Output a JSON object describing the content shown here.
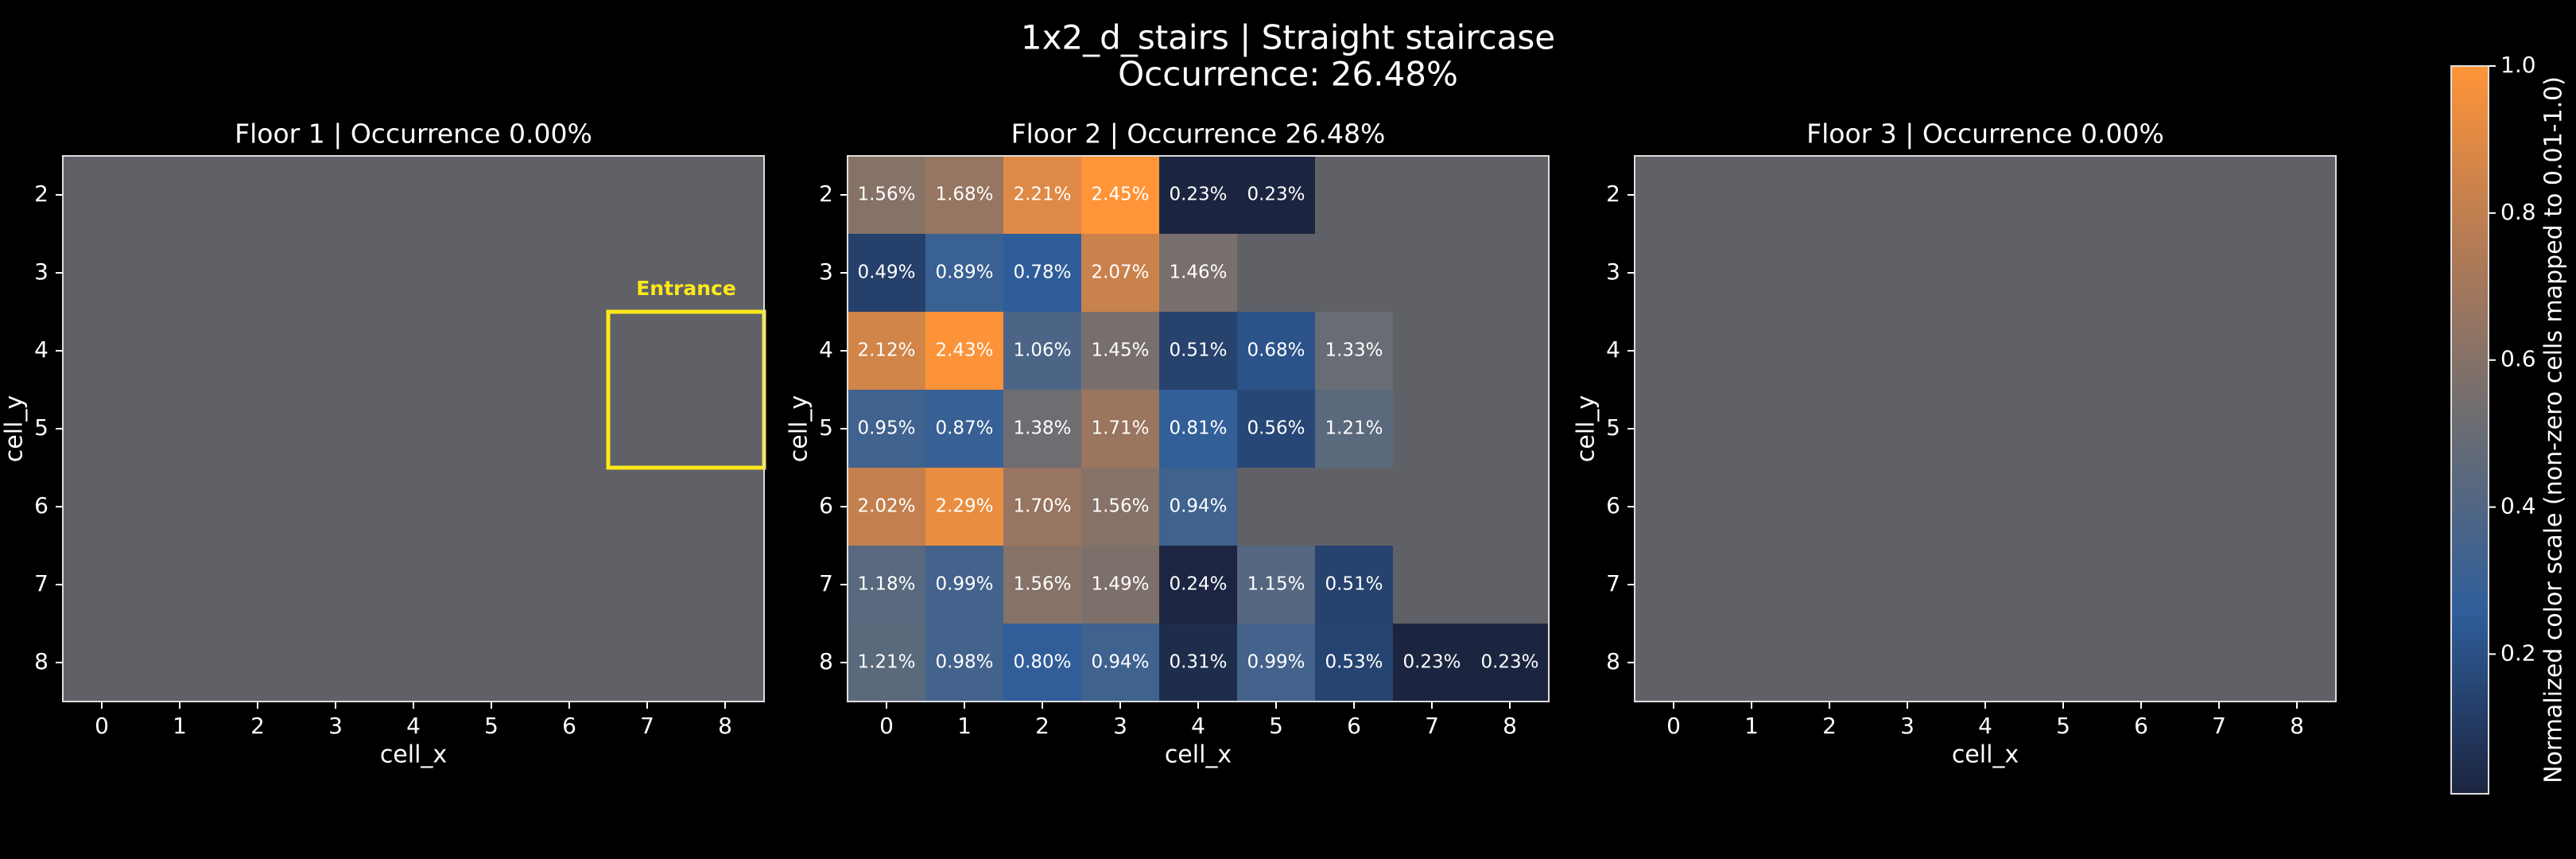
{
  "title": "1x2_d_stairs | Straight staircase",
  "subtitle": "Occurrence: 26.48%",
  "chart_data": [
    {
      "type": "heatmap",
      "title": "Floor 1 | Occurrence 0.00%",
      "x_label": "cell_x",
      "y_label": "cell_y",
      "x": [
        0,
        1,
        2,
        3,
        4,
        5,
        6,
        7,
        8
      ],
      "y": [
        2,
        3,
        4,
        5,
        6,
        7,
        8
      ],
      "xlim": [
        -0.5,
        8.5
      ],
      "ylim": [
        8.5,
        1.5
      ],
      "annotations": [
        {
          "text": "Entrance",
          "x": [
            6.5,
            8.5
          ],
          "y": [
            3.5,
            5.5
          ],
          "color": "#ffe81a"
        }
      ]
    },
    {
      "type": "heatmap",
      "title": "Floor 2 | Occurrence 26.48%",
      "x_label": "cell_x",
      "y_label": "cell_y",
      "x": [
        0,
        1,
        2,
        3,
        4,
        5,
        6,
        7,
        8
      ],
      "y": [
        2,
        3,
        4,
        5,
        6,
        7,
        8
      ],
      "xlim": [
        -0.5,
        8.5
      ],
      "ylim": [
        8.5,
        1.5
      ],
      "values": [
        [
          1.56,
          1.68,
          2.21,
          2.45,
          0.23,
          0.23,
          null,
          null,
          null
        ],
        [
          0.49,
          0.89,
          0.78,
          2.07,
          1.46,
          null,
          null,
          null,
          null
        ],
        [
          2.12,
          2.43,
          1.06,
          1.45,
          0.51,
          0.68,
          1.33,
          null,
          null
        ],
        [
          0.95,
          0.87,
          1.38,
          1.71,
          0.81,
          0.56,
          1.21,
          null,
          null
        ],
        [
          2.02,
          2.29,
          1.7,
          1.56,
          0.94,
          null,
          null,
          null,
          null
        ],
        [
          1.18,
          0.99,
          1.56,
          1.49,
          0.24,
          1.15,
          0.51,
          null,
          null
        ],
        [
          1.21,
          0.98,
          0.8,
          0.94,
          0.31,
          0.99,
          0.53,
          0.23,
          0.23
        ]
      ],
      "value_labels": [
        [
          "1.56%",
          "1.68%",
          "2.21%",
          "2.45%",
          "0.23%",
          "0.23%",
          null,
          null,
          null
        ],
        [
          "0.49%",
          "0.89%",
          "0.78%",
          "2.07%",
          "1.46%",
          null,
          null,
          null,
          null
        ],
        [
          "2.12%",
          "2.43%",
          "1.06%",
          "1.45%",
          "0.51%",
          "0.68%",
          "1.33%",
          null,
          null
        ],
        [
          "0.95%",
          "0.87%",
          "1.38%",
          "1.71%",
          "0.81%",
          "0.56%",
          "1.21%",
          null,
          null
        ],
        [
          "2.02%",
          "2.29%",
          "1.70%",
          "1.56%",
          "0.94%",
          null,
          null,
          null,
          null
        ],
        [
          "1.18%",
          "0.99%",
          "1.56%",
          "1.49%",
          "0.24%",
          "1.15%",
          "0.51%",
          null,
          null
        ],
        [
          "1.21%",
          "0.98%",
          "0.80%",
          "0.94%",
          "0.31%",
          "0.99%",
          "0.53%",
          "0.23%",
          "0.23%"
        ]
      ]
    },
    {
      "type": "heatmap",
      "title": "Floor 3 | Occurrence 0.00%",
      "x_label": "cell_x",
      "y_label": "cell_y",
      "x": [
        0,
        1,
        2,
        3,
        4,
        5,
        6,
        7,
        8
      ],
      "y": [
        2,
        3,
        4,
        5,
        6,
        7,
        8
      ],
      "xlim": [
        -0.5,
        8.5
      ],
      "ylim": [
        8.5,
        1.5
      ]
    }
  ],
  "colorbar": {
    "label": "Normalized color scale (non-zero cells mapped to 0.01-1.0)",
    "ylim": [
      0.01,
      1.0
    ],
    "yticks": [
      0.2,
      0.4,
      0.6,
      0.8,
      {
        "value": 1,
        "label": "1.0"
      }
    ],
    "colormap": [
      "#1c2540",
      "#2f5e9a",
      "#696c73",
      "#b27a55",
      "#ff9438"
    ]
  }
}
